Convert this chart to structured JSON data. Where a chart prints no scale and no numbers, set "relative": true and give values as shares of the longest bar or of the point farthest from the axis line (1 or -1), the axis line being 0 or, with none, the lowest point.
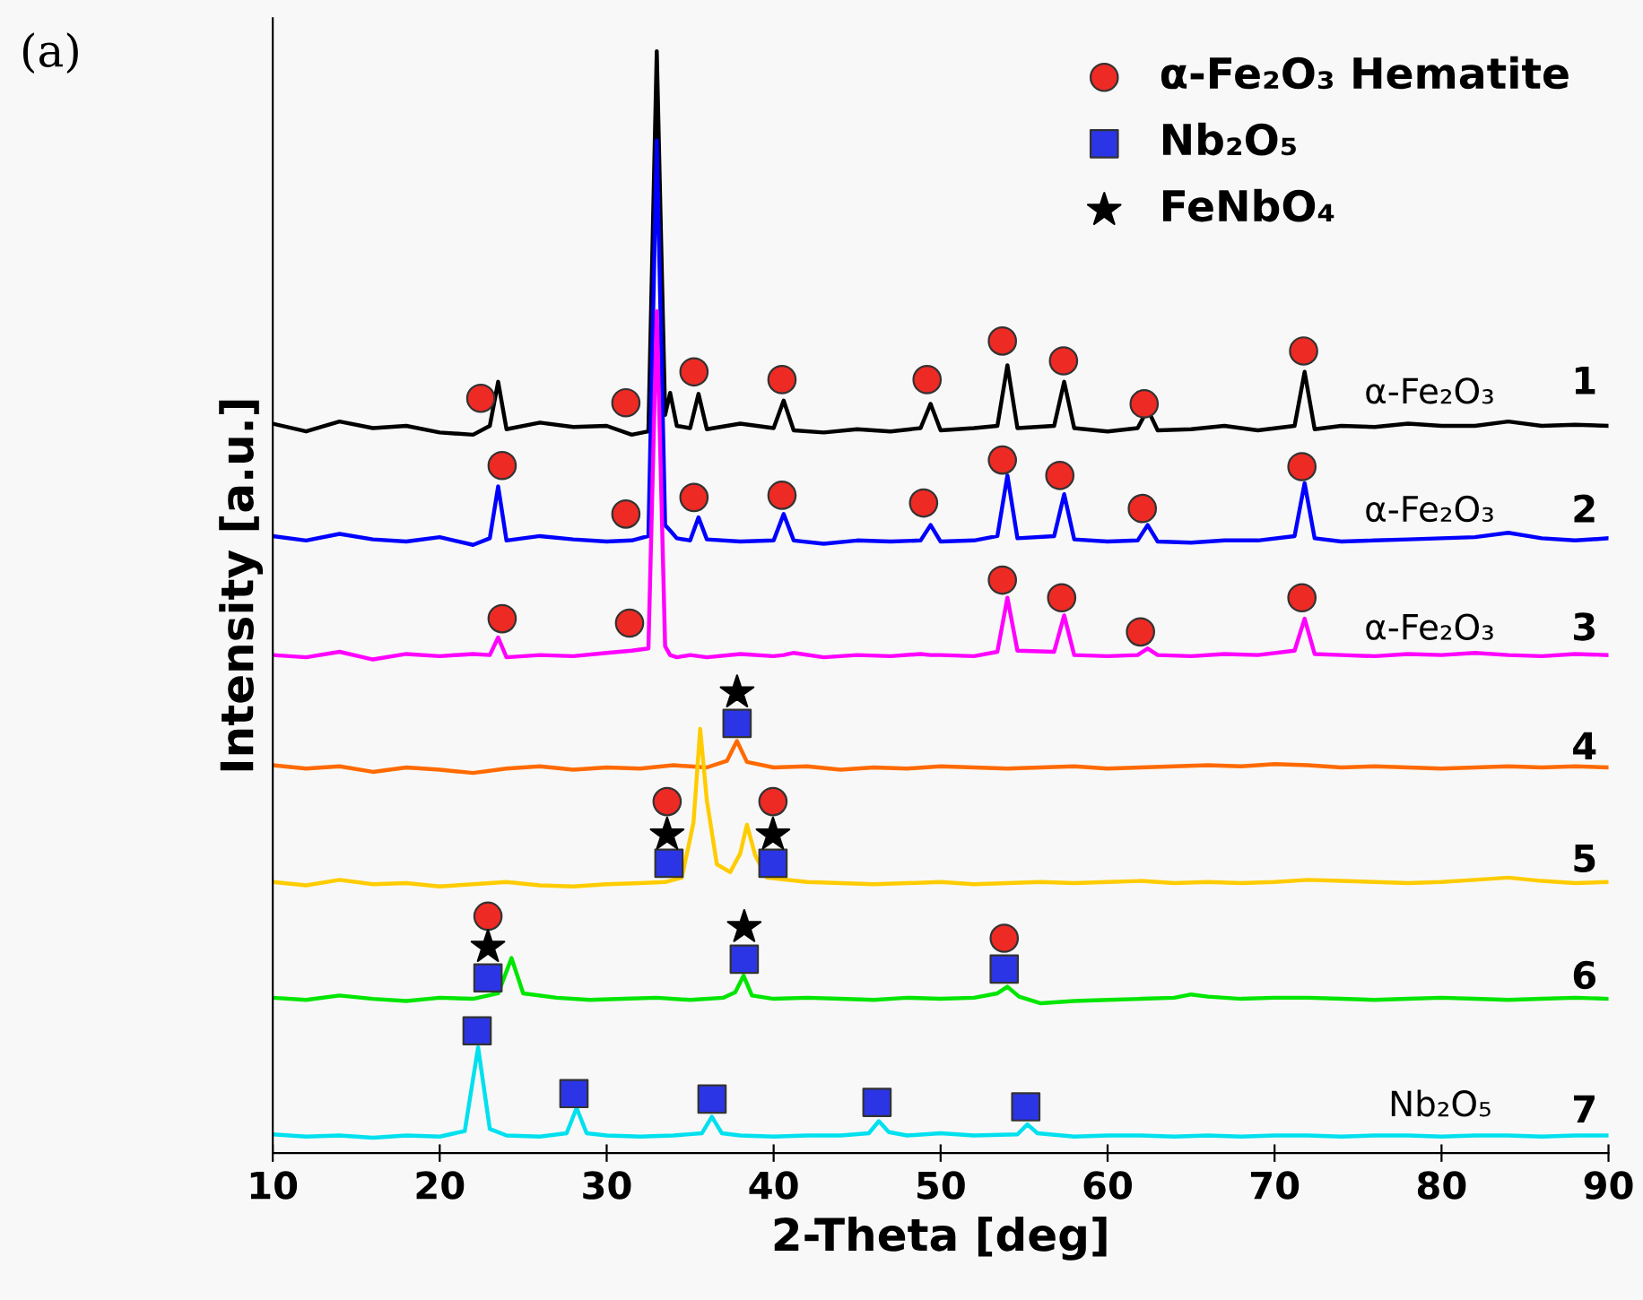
{
  "chart_data": {
    "type": "line",
    "relative": true,
    "xlabel": "2-Theta [deg]",
    "ylabel": "Intensity [a.u.]",
    "xlim": [
      10,
      90
    ],
    "xticks": [
      10,
      20,
      30,
      40,
      50,
      60,
      70,
      80,
      90
    ],
    "tick_labels": "x",
    "grid": false,
    "legend": "top right",
    "marker": "none",
    "line_style": "solid",
    "series": [
      {
        "color": "#000000",
        "x": [
          10,
          12,
          14,
          16,
          18,
          20,
          22,
          23,
          23.5,
          24,
          26,
          28,
          30,
          31.5,
          32.5,
          33,
          33.5,
          33.8,
          34.2,
          35,
          35.5,
          36,
          38,
          40,
          40.6,
          41.2,
          43,
          45,
          47,
          48.8,
          49.4,
          50,
          52,
          53.4,
          54,
          54.6,
          56.8,
          57.4,
          58,
          60,
          61.8,
          62.4,
          63,
          65,
          67,
          69,
          71.2,
          71.8,
          72.4,
          74,
          76,
          78,
          80,
          82,
          84,
          86,
          88,
          90
        ],
        "values": [
          0.662,
          0.655,
          0.664,
          0.658,
          0.66,
          0.654,
          0.652,
          0.66,
          0.7,
          0.657,
          0.663,
          0.659,
          0.66,
          0.652,
          0.655,
          1.0,
          0.67,
          0.69,
          0.66,
          0.658,
          0.689,
          0.657,
          0.662,
          0.658,
          0.683,
          0.656,
          0.654,
          0.657,
          0.655,
          0.658,
          0.68,
          0.656,
          0.658,
          0.66,
          0.715,
          0.658,
          0.66,
          0.7,
          0.658,
          0.655,
          0.658,
          0.675,
          0.656,
          0.657,
          0.66,
          0.656,
          0.66,
          0.709,
          0.657,
          0.66,
          0.659,
          0.662,
          0.66,
          0.66,
          0.664,
          0.66,
          0.661,
          0.66
        ]
      },
      {
        "color": "#0000ff",
        "x": [
          10,
          12,
          14,
          16,
          18,
          20,
          22,
          23,
          23.5,
          24,
          26,
          28,
          30,
          31.5,
          32.5,
          33,
          33.5,
          33.8,
          34.2,
          35,
          35.5,
          36,
          38,
          40,
          40.6,
          41.2,
          43,
          45,
          47,
          48.8,
          49.4,
          50,
          52,
          53.4,
          54,
          54.6,
          56.8,
          57.4,
          58,
          60,
          61.8,
          62.4,
          63,
          65,
          67,
          69,
          71.2,
          71.8,
          72.4,
          74,
          76,
          78,
          80,
          82,
          84,
          86,
          88,
          90
        ],
        "values": [
          0.56,
          0.556,
          0.562,
          0.557,
          0.555,
          0.559,
          0.552,
          0.558,
          0.605,
          0.556,
          0.56,
          0.557,
          0.555,
          0.556,
          0.56,
          0.919,
          0.57,
          0.565,
          0.558,
          0.556,
          0.577,
          0.557,
          0.555,
          0.556,
          0.58,
          0.556,
          0.553,
          0.556,
          0.555,
          0.556,
          0.57,
          0.555,
          0.556,
          0.56,
          0.615,
          0.558,
          0.56,
          0.598,
          0.557,
          0.555,
          0.556,
          0.57,
          0.555,
          0.554,
          0.556,
          0.556,
          0.56,
          0.608,
          0.558,
          0.555,
          0.556,
          0.557,
          0.558,
          0.559,
          0.563,
          0.558,
          0.556,
          0.558
        ]
      },
      {
        "color": "#ff00ff",
        "x": [
          10,
          12,
          14,
          16,
          18,
          20,
          22,
          23,
          23.5,
          24,
          26,
          28,
          30,
          31.5,
          32.5,
          33,
          33.5,
          33.8,
          34.2,
          35,
          35.5,
          36,
          38,
          40,
          40.6,
          41.2,
          43,
          45,
          47,
          48.8,
          49.4,
          50,
          52,
          53.4,
          54,
          54.6,
          56.8,
          57.4,
          58,
          60,
          61.8,
          62.4,
          63,
          65,
          67,
          69,
          71.2,
          71.8,
          72.4,
          74,
          76,
          78,
          80,
          82,
          84,
          86,
          88,
          90
        ],
        "values": [
          0.452,
          0.45,
          0.455,
          0.448,
          0.453,
          0.451,
          0.453,
          0.452,
          0.468,
          0.45,
          0.452,
          0.451,
          0.454,
          0.456,
          0.458,
          0.764,
          0.46,
          0.452,
          0.45,
          0.452,
          0.451,
          0.45,
          0.453,
          0.451,
          0.452,
          0.454,
          0.45,
          0.452,
          0.451,
          0.453,
          0.452,
          0.452,
          0.451,
          0.455,
          0.504,
          0.456,
          0.455,
          0.488,
          0.452,
          0.451,
          0.452,
          0.458,
          0.452,
          0.451,
          0.453,
          0.452,
          0.456,
          0.485,
          0.453,
          0.452,
          0.451,
          0.453,
          0.452,
          0.454,
          0.452,
          0.451,
          0.453,
          0.452
        ]
      },
      {
        "color": "#ff6a00",
        "x": [
          10,
          12,
          14,
          16,
          18,
          20,
          22,
          24,
          26,
          28,
          30,
          32,
          34,
          36,
          37.2,
          37.8,
          38.4,
          40,
          42,
          44,
          46,
          48,
          50,
          52,
          54,
          56,
          58,
          60,
          62,
          64,
          66,
          68,
          70,
          72,
          74,
          76,
          78,
          80,
          82,
          84,
          86,
          88,
          90
        ],
        "values": [
          0.352,
          0.349,
          0.351,
          0.346,
          0.35,
          0.348,
          0.345,
          0.349,
          0.351,
          0.348,
          0.35,
          0.349,
          0.352,
          0.35,
          0.356,
          0.374,
          0.355,
          0.35,
          0.351,
          0.348,
          0.35,
          0.349,
          0.351,
          0.35,
          0.349,
          0.35,
          0.351,
          0.349,
          0.35,
          0.351,
          0.352,
          0.351,
          0.353,
          0.352,
          0.35,
          0.351,
          0.35,
          0.349,
          0.35,
          0.351,
          0.35,
          0.351,
          0.35
        ]
      },
      {
        "color": "#ffcc00",
        "x": [
          10,
          12,
          14,
          16,
          18,
          20,
          22,
          24,
          26,
          28,
          30,
          32,
          33.5,
          34.5,
          35.2,
          35.6,
          36.0,
          36.6,
          37.4,
          38.0,
          38.4,
          38.9,
          39.6,
          42,
          44,
          46,
          48,
          50,
          52,
          54,
          56,
          58,
          60,
          62,
          64,
          66,
          68,
          70,
          72,
          74,
          76,
          78,
          80,
          82,
          84,
          86,
          88,
          90
        ],
        "values": [
          0.246,
          0.243,
          0.248,
          0.244,
          0.245,
          0.242,
          0.244,
          0.246,
          0.243,
          0.242,
          0.244,
          0.245,
          0.246,
          0.25,
          0.3,
          0.385,
          0.32,
          0.262,
          0.255,
          0.272,
          0.298,
          0.27,
          0.25,
          0.246,
          0.245,
          0.244,
          0.245,
          0.246,
          0.244,
          0.245,
          0.246,
          0.245,
          0.246,
          0.247,
          0.245,
          0.246,
          0.245,
          0.246,
          0.248,
          0.247,
          0.246,
          0.245,
          0.246,
          0.248,
          0.25,
          0.247,
          0.245,
          0.246
        ]
      },
      {
        "color": "#00e600",
        "x": [
          10,
          12,
          14,
          16,
          18,
          20,
          22,
          23.5,
          24.3,
          25,
          27,
          29,
          31,
          33,
          35,
          37,
          37.7,
          38.2,
          38.7,
          40,
          42,
          44,
          46,
          48,
          50,
          52,
          53.4,
          54,
          54.7,
          56,
          58,
          60,
          62,
          64,
          65,
          66,
          68,
          70,
          72,
          74,
          76,
          78,
          80,
          82,
          84,
          86,
          88,
          90
        ],
        "values": [
          0.141,
          0.139,
          0.143,
          0.14,
          0.138,
          0.141,
          0.14,
          0.145,
          0.177,
          0.145,
          0.141,
          0.139,
          0.14,
          0.141,
          0.139,
          0.141,
          0.146,
          0.161,
          0.143,
          0.14,
          0.141,
          0.14,
          0.139,
          0.141,
          0.14,
          0.141,
          0.145,
          0.151,
          0.142,
          0.136,
          0.138,
          0.139,
          0.14,
          0.141,
          0.144,
          0.142,
          0.14,
          0.141,
          0.141,
          0.14,
          0.139,
          0.14,
          0.141,
          0.14,
          0.139,
          0.14,
          0.141,
          0.14
        ]
      },
      {
        "color": "#00e0ee",
        "x": [
          10,
          12,
          14,
          16,
          18,
          20,
          21.5,
          22.3,
          23.0,
          24,
          26,
          27.6,
          28.2,
          28.8,
          30,
          32,
          34,
          35.7,
          36.3,
          36.9,
          38,
          40,
          42,
          44,
          45.7,
          46.3,
          46.9,
          48,
          50,
          52,
          54.6,
          55.2,
          55.8,
          58,
          60,
          62,
          64,
          66,
          68,
          70,
          72,
          74,
          76,
          78,
          80,
          82,
          84,
          86,
          88,
          90
        ],
        "values": [
          0.017,
          0.015,
          0.016,
          0.014,
          0.016,
          0.015,
          0.02,
          0.096,
          0.022,
          0.016,
          0.015,
          0.018,
          0.041,
          0.018,
          0.016,
          0.015,
          0.016,
          0.018,
          0.033,
          0.018,
          0.016,
          0.015,
          0.016,
          0.016,
          0.018,
          0.029,
          0.019,
          0.016,
          0.018,
          0.016,
          0.017,
          0.026,
          0.018,
          0.015,
          0.016,
          0.016,
          0.015,
          0.016,
          0.015,
          0.016,
          0.016,
          0.015,
          0.016,
          0.016,
          0.015,
          0.016,
          0.016,
          0.015,
          0.016,
          0.016
        ]
      },
      {
        "type": "scatter",
        "name": "α-Fe₂O₃ Hematite",
        "marker": "circle",
        "color": "#ee2a24",
        "x": [
          22.46,
          31.15,
          35.23,
          40.5,
          49.19,
          53.7,
          57.36,
          62.19,
          71.74,
          23.74,
          31.15,
          35.23,
          40.5,
          48.98,
          53.7,
          57.14,
          62.08,
          71.64,
          23.74,
          31.37,
          53.7,
          57.25,
          61.97,
          71.64,
          33.62,
          39.96,
          22.89,
          53.81
        ],
        "values": [
          0.685,
          0.681,
          0.709,
          0.702,
          0.702,
          0.737,
          0.719,
          0.68,
          0.728,
          0.624,
          0.58,
          0.595,
          0.597,
          0.59,
          0.629,
          0.615,
          0.585,
          0.623,
          0.485,
          0.481,
          0.52,
          0.504,
          0.473,
          0.504,
          0.319,
          0.319,
          0.215,
          0.195
        ]
      },
      {
        "type": "scatter",
        "name": "Nb₂O₅",
        "marker": "square",
        "color": "#2b35e6",
        "x": [
          37.81,
          33.73,
          39.96,
          22.89,
          38.24,
          53.81,
          22.24,
          28.04,
          36.31,
          46.19,
          55.1
        ],
        "values": [
          0.39,
          0.263,
          0.263,
          0.159,
          0.176,
          0.167,
          0.111,
          0.054,
          0.049,
          0.046,
          0.042
        ]
      },
      {
        "type": "scatter",
        "name": "FeNbO₄",
        "marker": "star",
        "color": "#000000",
        "x": [
          37.81,
          33.62,
          39.96,
          22.89,
          38.24
        ],
        "values": [
          0.418,
          0.289,
          0.289,
          0.187,
          0.205
        ]
      }
    ],
    "annotations": [
      "(a)",
      "α-Fe₂O₃",
      "α-Fe₂O₃",
      "α-Fe₂O₃",
      "Nb₂O₅",
      "1",
      "2",
      "3",
      "4",
      "5",
      "6",
      "7"
    ]
  }
}
